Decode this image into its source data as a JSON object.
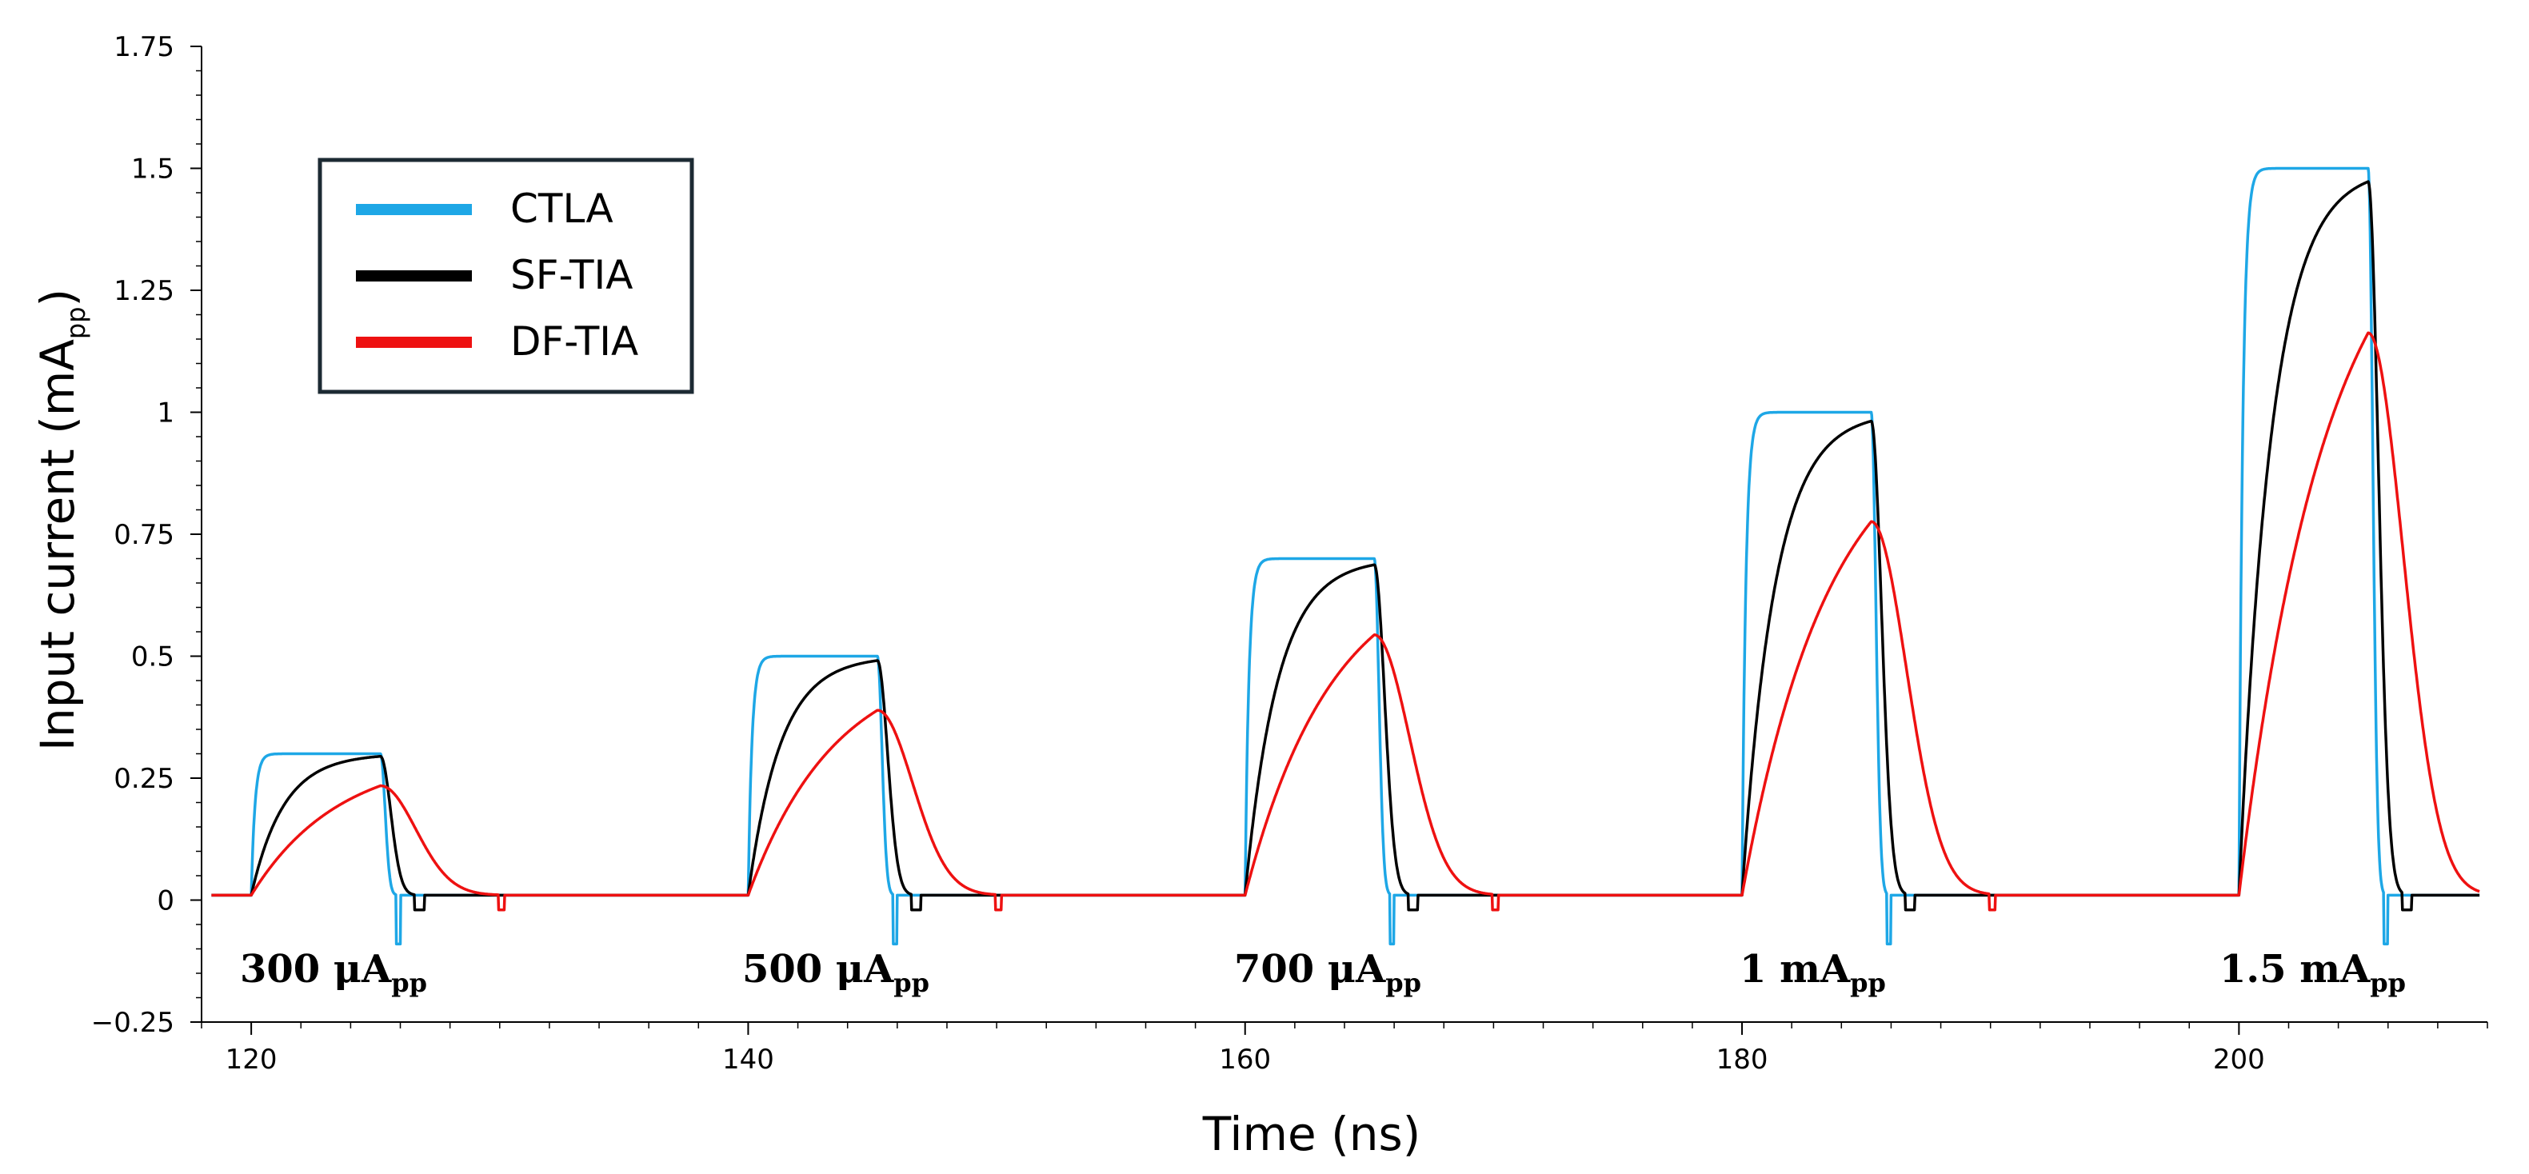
{
  "chart_data": {
    "type": "line",
    "xlabel": "Time (ns)",
    "ylabel_main": "Input current (mA",
    "ylabel_sub": "pp",
    "ylabel_close": ")",
    "xlim": [
      118,
      210
    ],
    "ylim": [
      -0.25,
      1.75
    ],
    "x_ticks": [
      120,
      140,
      160,
      180,
      200
    ],
    "x_tick_labels": [
      "120",
      "140",
      "160",
      "180",
      "200"
    ],
    "y_ticks": [
      -0.25,
      0,
      0.25,
      0.5,
      0.75,
      1,
      1.25,
      1.5,
      1.75
    ],
    "y_tick_labels": [
      "−0.25",
      "0",
      "0.25",
      "0.5",
      "0.75",
      "1",
      "1.25",
      "1.5",
      "1.75"
    ],
    "legend": {
      "position": "top-left",
      "entries": [
        {
          "name": "CTLA",
          "color": "#1ea7e6"
        },
        {
          "name": "SF-TIA",
          "color": "#000000"
        },
        {
          "name": "DF-TIA",
          "color": "#ee1111"
        }
      ]
    },
    "pulses": [
      {
        "start": 120,
        "width": 5.2,
        "amplitude": 0.3,
        "label_main": "300 μA",
        "label_sub": "pp"
      },
      {
        "start": 140,
        "width": 5.2,
        "amplitude": 0.5,
        "label_main": "500 μA",
        "label_sub": "pp"
      },
      {
        "start": 160,
        "width": 5.2,
        "amplitude": 0.7,
        "label_main": "700 μA",
        "label_sub": "pp"
      },
      {
        "start": 180,
        "width": 5.2,
        "amplitude": 1.0,
        "label_main": "1 mA",
        "label_sub": "pp"
      },
      {
        "start": 200,
        "width": 5.2,
        "amplitude": 1.5,
        "label_main": "1.5 mA",
        "label_sub": "pp"
      }
    ],
    "baseline": 0.01,
    "series": [
      {
        "name": "CTLA",
        "color": "#1ea7e6",
        "rise_tau_ns": 0.15,
        "fall_tau_ns": 0.25,
        "dip": -0.09
      },
      {
        "name": "SF-TIA",
        "color": "#000000",
        "rise_tau_ns": 1.3,
        "fall_tau_ns": 0.55,
        "dip": -0.02
      },
      {
        "name": "DF-TIA",
        "color": "#ee1111",
        "rise_tau_ns": 3.5,
        "fall_tau_ns": 1.9,
        "dip": -0.02
      }
    ]
  }
}
